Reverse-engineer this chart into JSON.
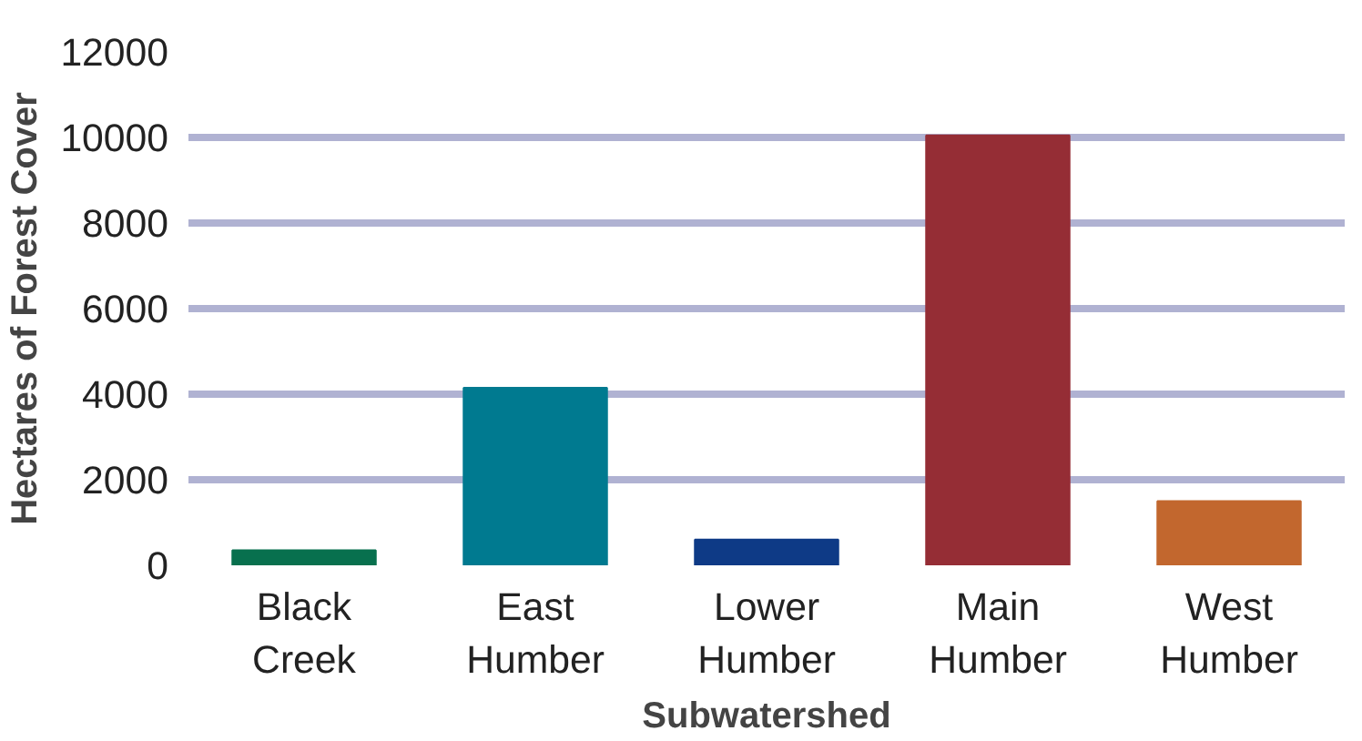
{
  "chart_data": {
    "type": "bar",
    "xlabel": "Subwatershed",
    "ylabel": "Hectares of Forest Cover",
    "categories": [
      "Black Creek",
      "East Humber",
      "Lower Humber",
      "Main Humber",
      "West Humber"
    ],
    "values": [
      350,
      4150,
      600,
      10050,
      1500
    ],
    "colors": [
      "#08704e",
      "#007a90",
      "#0e3a86",
      "#952d35",
      "#c2672e"
    ],
    "ylim": [
      0,
      12000
    ],
    "yticks": [
      0,
      2000,
      4000,
      6000,
      8000,
      10000,
      12000
    ],
    "grid": "y"
  }
}
